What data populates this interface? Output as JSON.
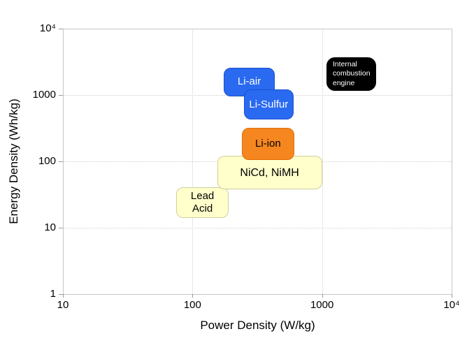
{
  "chart_data": {
    "type": "area",
    "title": "",
    "xlabel": "Power Density (W/kg)",
    "ylabel": "Energy Density (Wh/kg)",
    "xscale": "log",
    "yscale": "log",
    "xlim": [
      10,
      10000
    ],
    "ylim": [
      1,
      10000
    ],
    "grid": "dotted",
    "legend": "none",
    "frame_color": "#c6c6c6",
    "grid_color": "#cfcfcf",
    "x_ticks": [
      {
        "value": 10,
        "label": "10"
      },
      {
        "value": 100,
        "label": "100"
      },
      {
        "value": 1000,
        "label": "1000"
      },
      {
        "value": 10000,
        "label": "10⁴"
      }
    ],
    "y_ticks": [
      {
        "value": 10000,
        "label": "10⁴"
      },
      {
        "value": 1000,
        "label": "1000"
      },
      {
        "value": 100,
        "label": "100"
      },
      {
        "value": 10,
        "label": "10"
      },
      {
        "value": 1,
        "label": "1"
      }
    ],
    "regions": [
      {
        "id": "lead-acid",
        "label": "Lead\nAcid",
        "power_range_W_per_kg": [
          75,
          190
        ],
        "energy_range_Wh_per_kg": [
          14,
          41
        ],
        "fill": "#ffffcc",
        "border": "#cfcf9c",
        "text_color": "#000000"
      },
      {
        "id": "nicd-nimh",
        "label": "NiCd, NiMH",
        "power_range_W_per_kg": [
          155,
          1000
        ],
        "energy_range_Wh_per_kg": [
          38,
          120
        ],
        "fill": "#ffffcc",
        "border": "#cfcf9c",
        "text_color": "#000000"
      },
      {
        "id": "li-ion",
        "label": "Li-ion",
        "power_range_W_per_kg": [
          240,
          610
        ],
        "energy_range_Wh_per_kg": [
          105,
          320
        ],
        "fill": "#f6861f",
        "border": "#dd6f08",
        "text_color": "#000000"
      },
      {
        "id": "li-air",
        "label": "Li-air",
        "power_range_W_per_kg": [
          175,
          430
        ],
        "energy_range_Wh_per_kg": [
          950,
          2600
        ],
        "fill": "#2a6af0",
        "border": "#1a50cf",
        "text_color": "#ffffff"
      },
      {
        "id": "li-sulfur",
        "label": "Li-Sulfur",
        "power_range_W_per_kg": [
          250,
          600
        ],
        "energy_range_Wh_per_kg": [
          430,
          1200
        ],
        "fill": "#2a6af0",
        "border": "#1a50cf",
        "text_color": "#ffffff"
      },
      {
        "id": "ice",
        "label": "Internal\ncombustion\nengine",
        "power_range_W_per_kg": [
          1080,
          2600
        ],
        "energy_range_Wh_per_kg": [
          1150,
          3700
        ],
        "fill": "#000000",
        "border": "#000000",
        "text_color": "#ffffff"
      }
    ]
  }
}
